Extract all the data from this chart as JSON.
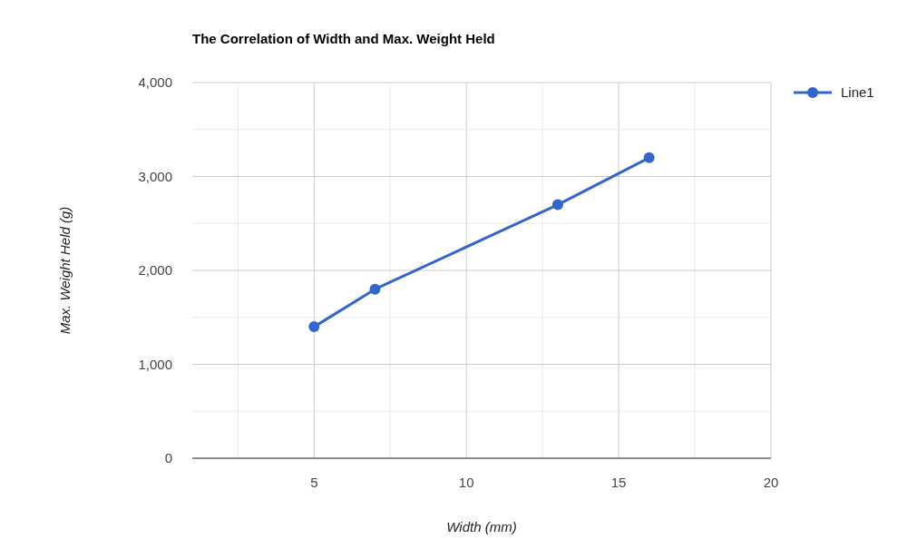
{
  "chart_data": {
    "type": "line",
    "title": "The Correlation of Width and Max. Weight Held",
    "xlabel": "Width (mm)",
    "ylabel": "Max. Weight Held (g)",
    "x": [
      5,
      7,
      13,
      16
    ],
    "series": [
      {
        "name": "Line1",
        "color": "#3366cc",
        "values": [
          1400,
          1800,
          2700,
          3200
        ]
      }
    ],
    "xlim": [
      1,
      20
    ],
    "xticks": [
      {
        "value": 2.5,
        "label": null
      },
      5,
      {
        "value": 7.5,
        "label": null
      },
      10,
      {
        "value": 12.5,
        "label": null
      },
      15,
      {
        "value": 17.5,
        "label": null
      },
      20
    ],
    "ylim": [
      0,
      4000
    ],
    "yticks": [
      {
        "value": 0,
        "label": "0"
      },
      {
        "value": 500,
        "label": null
      },
      {
        "value": 1000,
        "label": "1,000"
      },
      {
        "value": 1500,
        "label": null
      },
      {
        "value": 2000,
        "label": "2,000"
      },
      {
        "value": 2500,
        "label": null
      },
      {
        "value": 3000,
        "label": "3,000"
      },
      {
        "value": 3500,
        "label": null
      },
      {
        "value": 4000,
        "label": "4,000"
      }
    ],
    "grid": true,
    "legend": "top right",
    "marker": "circle",
    "line_style": "solid"
  }
}
